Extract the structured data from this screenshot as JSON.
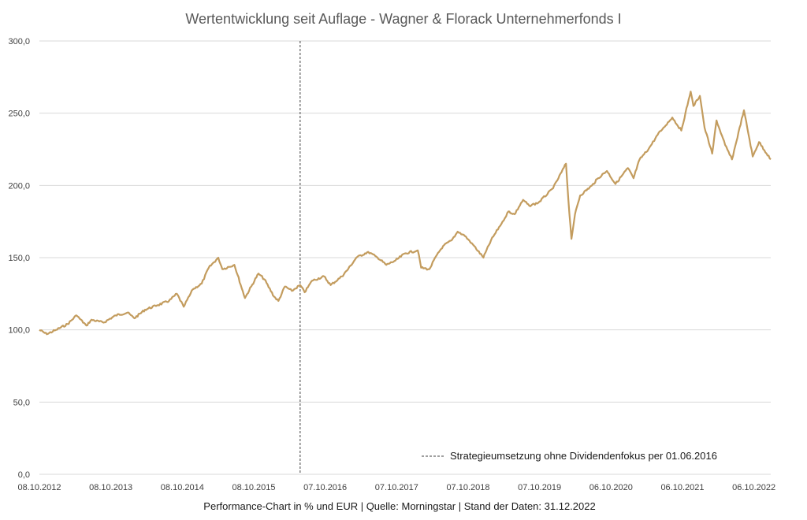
{
  "chart_data": {
    "type": "line",
    "title": "Wertentwicklung seit Auflage - Wagner & Florack Unternehmerfonds I",
    "caption": "Performance-Chart in % und EUR | Quelle: Morningstar | Stand der Daten: 31.12.2022",
    "ylim": [
      0,
      300
    ],
    "yticks": [
      "0,0",
      "50,0",
      "100,0",
      "150,0",
      "200,0",
      "250,0",
      "300,0"
    ],
    "ytick_values": [
      0,
      50,
      100,
      150,
      200,
      250,
      300
    ],
    "xlim": [
      "2012-10-08",
      "2022-12-31"
    ],
    "xticks": [
      "08.10.2012",
      "08.10.2013",
      "08.10.2014",
      "08.10.2015",
      "07.10.2016",
      "07.10.2017",
      "07.10.2018",
      "07.10.2019",
      "06.10.2020",
      "06.10.2021",
      "06.10.2022"
    ],
    "xtick_dates": [
      "2012-10-08",
      "2013-10-08",
      "2014-10-08",
      "2015-10-08",
      "2016-10-07",
      "2017-10-07",
      "2018-10-07",
      "2019-10-07",
      "2020-10-06",
      "2021-10-06",
      "2022-10-06"
    ],
    "grid": true,
    "legend": {
      "position": "bottom-right",
      "label": "Strategieumsetzung ohne Dividendenfokus per 01.06.2016"
    },
    "reference_line": {
      "date": "2016-06-01",
      "style": "dashed"
    },
    "series": [
      {
        "color": "#c39c5e",
        "points": [
          [
            "2012-10-08",
            100
          ],
          [
            "2012-11-15",
            97
          ],
          [
            "2013-01-01",
            100
          ],
          [
            "2013-03-01",
            104
          ],
          [
            "2013-04-15",
            110
          ],
          [
            "2013-06-05",
            103
          ],
          [
            "2013-07-01",
            107
          ],
          [
            "2013-09-01",
            105
          ],
          [
            "2013-11-01",
            110
          ],
          [
            "2014-01-01",
            112
          ],
          [
            "2014-02-05",
            108
          ],
          [
            "2014-04-01",
            114
          ],
          [
            "2014-06-01",
            117
          ],
          [
            "2014-08-01",
            120
          ],
          [
            "2014-09-10",
            125
          ],
          [
            "2014-10-15",
            116
          ],
          [
            "2014-12-01",
            128
          ],
          [
            "2015-01-15",
            132
          ],
          [
            "2015-02-20",
            143
          ],
          [
            "2015-04-10",
            150
          ],
          [
            "2015-05-01",
            142
          ],
          [
            "2015-07-01",
            145
          ],
          [
            "2015-08-24",
            122
          ],
          [
            "2015-09-25",
            130
          ],
          [
            "2015-11-01",
            139
          ],
          [
            "2015-12-01",
            135
          ],
          [
            "2016-01-20",
            123
          ],
          [
            "2016-02-11",
            120
          ],
          [
            "2016-03-15",
            130
          ],
          [
            "2016-04-20",
            127
          ],
          [
            "2016-06-01",
            131
          ],
          [
            "2016-06-24",
            126
          ],
          [
            "2016-08-01",
            134
          ],
          [
            "2016-10-01",
            137
          ],
          [
            "2016-11-04",
            131
          ],
          [
            "2016-12-31",
            137
          ],
          [
            "2017-02-01",
            142
          ],
          [
            "2017-03-15",
            150
          ],
          [
            "2017-05-15",
            154
          ],
          [
            "2017-07-01",
            150
          ],
          [
            "2017-08-15",
            145
          ],
          [
            "2017-10-01",
            148
          ],
          [
            "2017-11-20",
            153
          ],
          [
            "2018-01-23",
            155
          ],
          [
            "2018-02-09",
            143
          ],
          [
            "2018-03-23",
            142
          ],
          [
            "2018-05-01",
            152
          ],
          [
            "2018-06-01",
            158
          ],
          [
            "2018-07-15",
            162
          ],
          [
            "2018-08-15",
            168
          ],
          [
            "2018-09-20",
            165
          ],
          [
            "2018-10-26",
            160
          ],
          [
            "2018-12-24",
            150
          ],
          [
            "2019-02-01",
            162
          ],
          [
            "2019-04-01",
            175
          ],
          [
            "2019-05-01",
            182
          ],
          [
            "2019-06-01",
            180
          ],
          [
            "2019-07-15",
            190
          ],
          [
            "2019-08-15",
            186
          ],
          [
            "2019-10-01",
            188
          ],
          [
            "2019-12-15",
            198
          ],
          [
            "2020-02-19",
            215
          ],
          [
            "2020-03-02",
            190
          ],
          [
            "2020-03-18",
            163
          ],
          [
            "2020-04-05",
            180
          ],
          [
            "2020-05-01",
            193
          ],
          [
            "2020-07-01",
            200
          ],
          [
            "2020-08-01",
            205
          ],
          [
            "2020-09-15",
            210
          ],
          [
            "2020-10-29",
            201
          ],
          [
            "2020-12-31",
            212
          ],
          [
            "2021-01-29",
            205
          ],
          [
            "2021-03-01",
            218
          ],
          [
            "2021-04-15",
            225
          ],
          [
            "2021-06-01",
            235
          ],
          [
            "2021-07-01",
            240
          ],
          [
            "2021-08-15",
            247
          ],
          [
            "2021-09-30",
            238
          ],
          [
            "2021-11-17",
            265
          ],
          [
            "2021-12-01",
            255
          ],
          [
            "2022-01-03",
            262
          ],
          [
            "2022-01-27",
            240
          ],
          [
            "2022-03-07",
            222
          ],
          [
            "2022-03-29",
            245
          ],
          [
            "2022-05-12",
            228
          ],
          [
            "2022-06-16",
            218
          ],
          [
            "2022-08-16",
            252
          ],
          [
            "2022-09-30",
            220
          ],
          [
            "2022-11-01",
            230
          ],
          [
            "2022-12-31",
            218
          ]
        ]
      }
    ]
  }
}
